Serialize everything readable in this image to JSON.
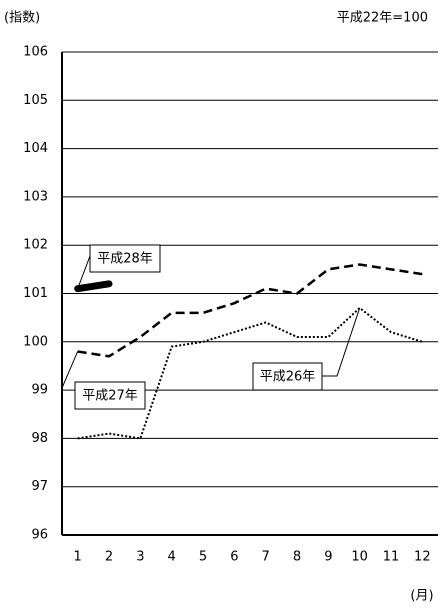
{
  "chart_data": {
    "type": "line",
    "y_unit_label": "(指数)",
    "base_note": "平成22年=100",
    "x_unit_label": "(月)",
    "categories": [
      "1",
      "2",
      "3",
      "4",
      "5",
      "6",
      "7",
      "8",
      "9",
      "10",
      "11",
      "12"
    ],
    "series": [
      {
        "name": "平成26年",
        "color": "#000000",
        "line_style": "dotted",
        "values": [
          98.0,
          98.1,
          98.0,
          99.9,
          100.0,
          100.2,
          100.4,
          100.1,
          100.1,
          100.7,
          100.2,
          100.0
        ]
      },
      {
        "name": "平成27年",
        "color": "#000000",
        "line_style": "dashed",
        "values": [
          99.8,
          99.7,
          100.1,
          100.6,
          100.6,
          100.8,
          101.1,
          101.0,
          101.5,
          101.6,
          101.5,
          101.4
        ]
      },
      {
        "name": "平成28年",
        "color": "#000000",
        "line_style": "thick",
        "values": [
          101.1,
          101.2,
          null,
          null,
          null,
          null,
          null,
          null,
          null,
          null,
          null,
          null
        ]
      }
    ],
    "ylim": [
      96,
      106
    ],
    "yticks": [
      96,
      97,
      98,
      99,
      100,
      101,
      102,
      103,
      104,
      105,
      106
    ],
    "grid": true
  }
}
